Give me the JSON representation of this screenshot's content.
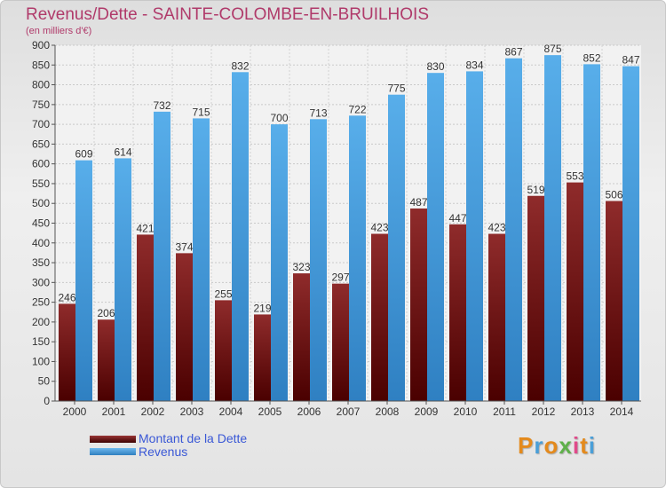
{
  "title": "Revenus/Dette - SAINTE-COLOMBE-EN-BRUILHOIS",
  "subtitle": "(en milliers d'€)",
  "colors": {
    "debt": "#7a1a1a",
    "revenue": "#4aa3e4",
    "title": "#b03a6a",
    "legend_text": "#3a58d6"
  },
  "legend": {
    "debt_label": "Montant de la Dette",
    "revenue_label": "Revenus"
  },
  "logo": {
    "letters": [
      "P",
      "r",
      "o",
      "x",
      "i",
      "t",
      "i"
    ],
    "colors": [
      "#e48a1c",
      "#4a9fd8",
      "#e48a1c",
      "#5fb04a",
      "#e04a8a",
      "#e48a1c",
      "#4a9fd8"
    ]
  },
  "chart_data": {
    "type": "bar",
    "categories": [
      "2000",
      "2001",
      "2002",
      "2003",
      "2004",
      "2005",
      "2006",
      "2007",
      "2008",
      "2009",
      "2010",
      "2011",
      "2012",
      "2013",
      "2014"
    ],
    "series": [
      {
        "name": "Montant de la Dette",
        "values": [
          246,
          206,
          421,
          374,
          255,
          219,
          323,
          297,
          423,
          487,
          447,
          423,
          519,
          553,
          506
        ]
      },
      {
        "name": "Revenus",
        "values": [
          609,
          614,
          732,
          715,
          832,
          700,
          713,
          722,
          775,
          830,
          834,
          867,
          875,
          852,
          847
        ]
      }
    ],
    "ylim": [
      0,
      900
    ],
    "yticks": [
      0,
      50,
      100,
      150,
      200,
      250,
      300,
      350,
      400,
      450,
      500,
      550,
      600,
      650,
      700,
      750,
      800,
      850,
      900
    ],
    "grid": true,
    "legend_position": "bottom-left"
  }
}
